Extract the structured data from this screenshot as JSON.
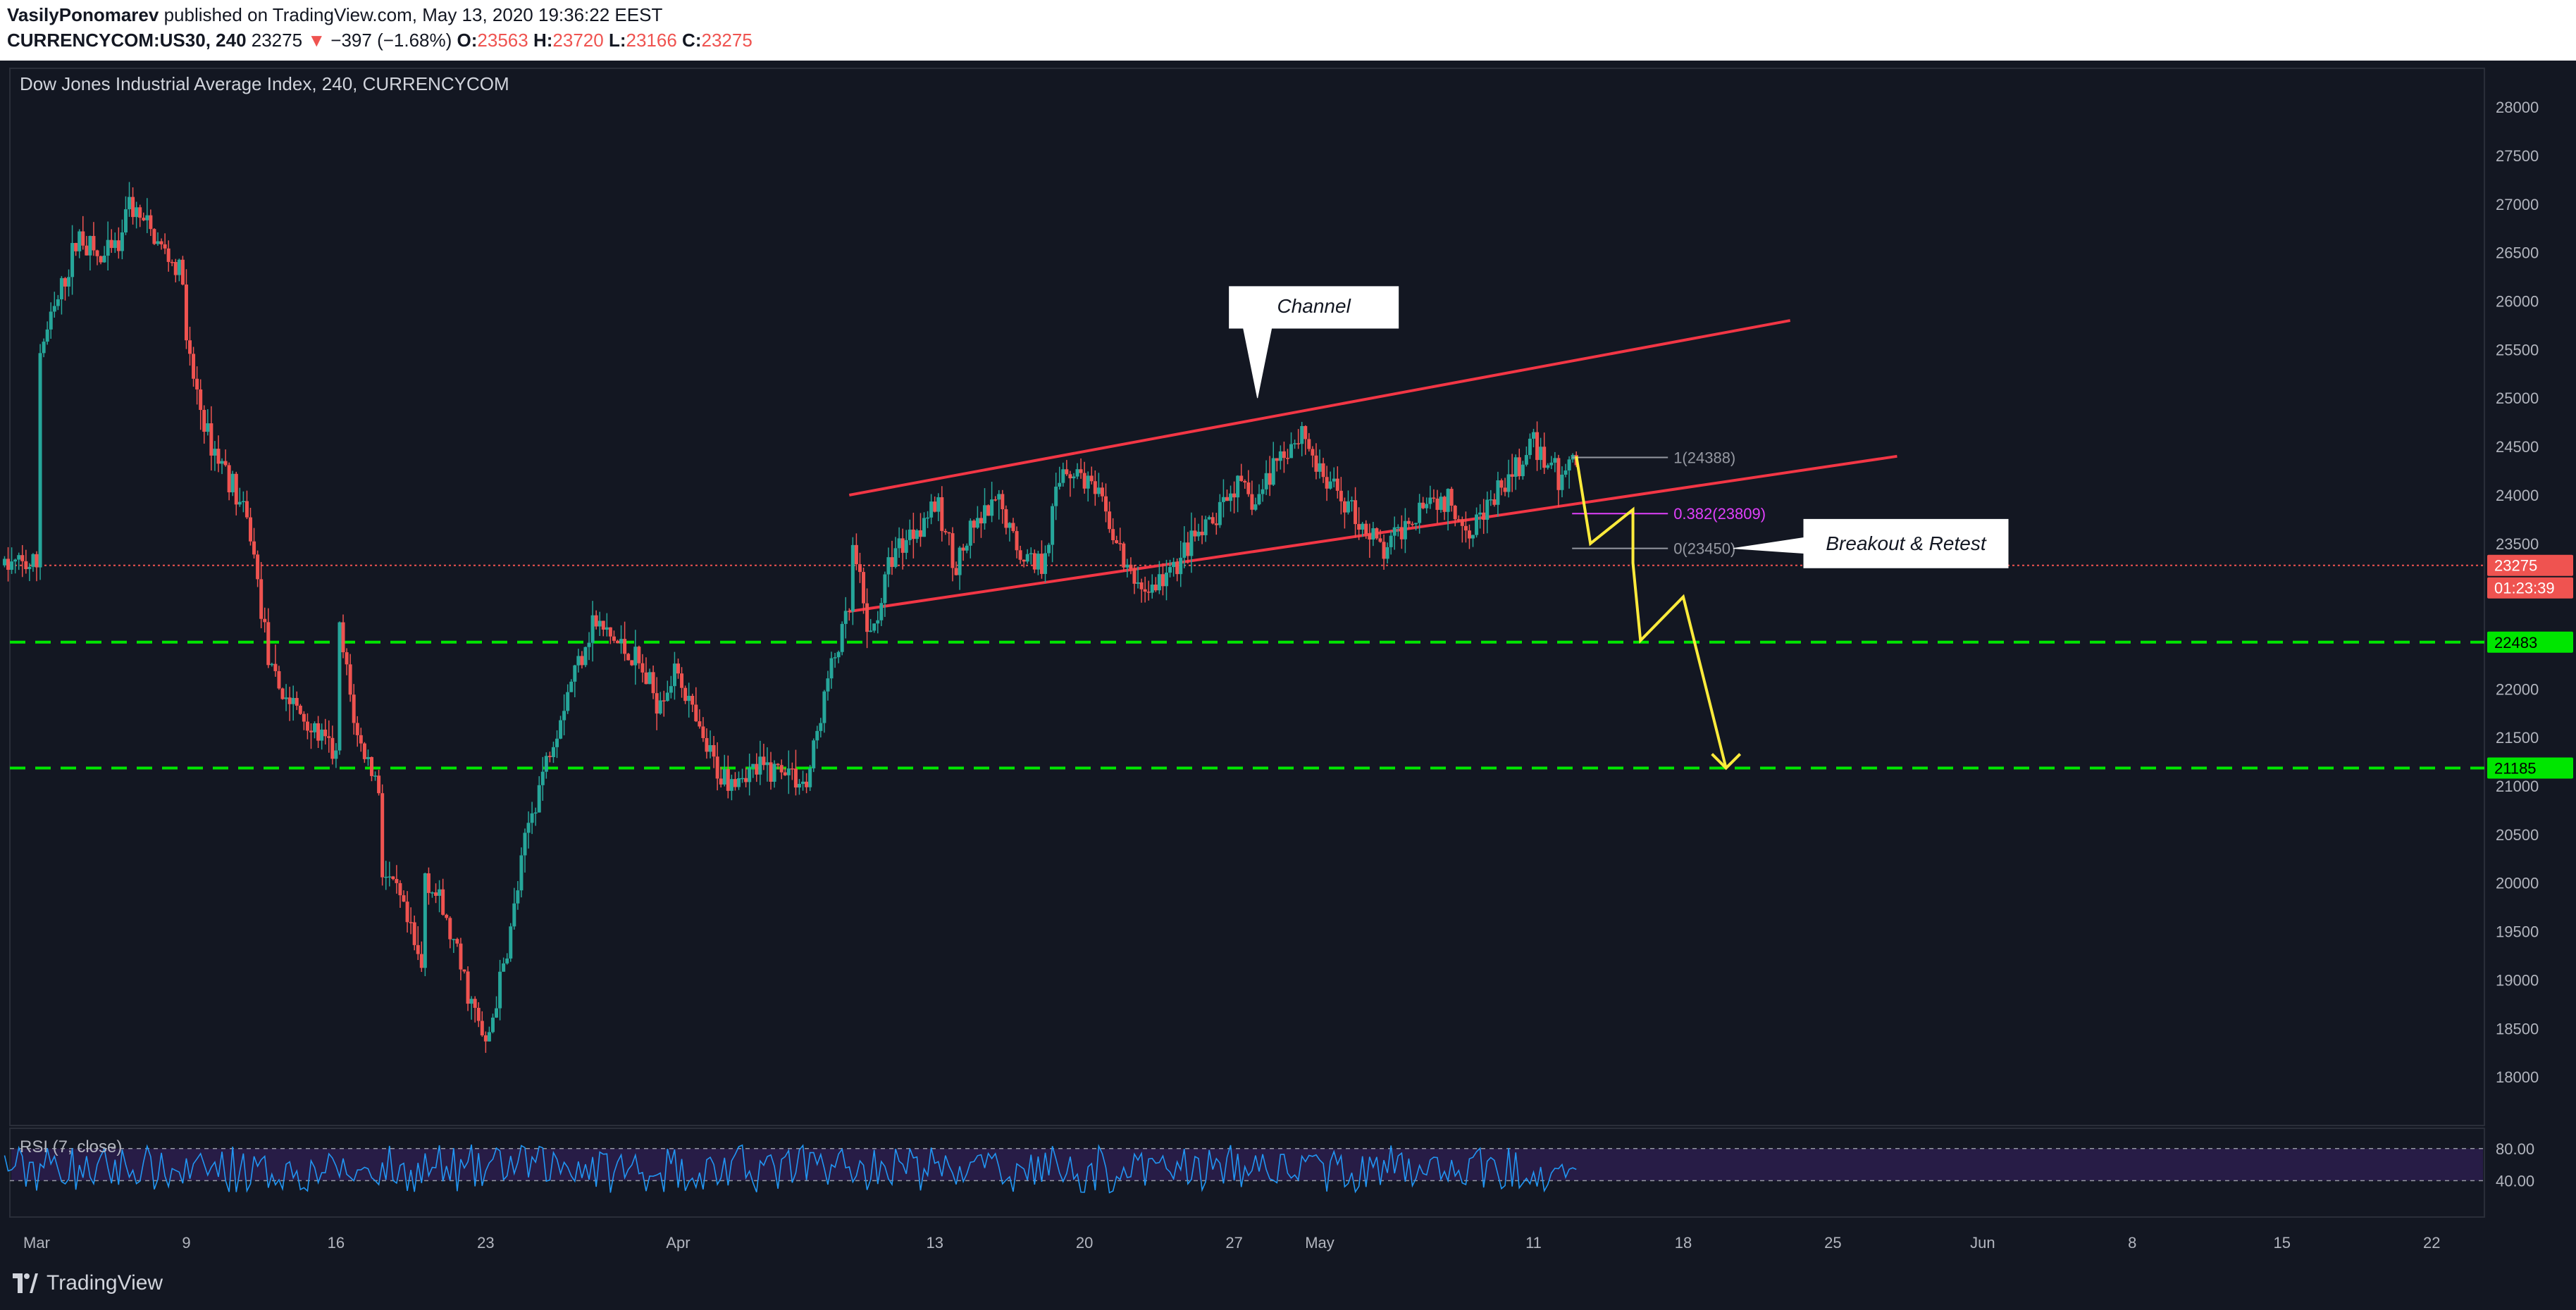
{
  "header": {
    "author": "VasilyPonomarev",
    "published_text": "published on TradingView.com, May 13, 2020 19:36:22 EEST",
    "symbol": "CURRENCYCOM:US30, 240",
    "last": "23275",
    "change_arrow": "▼",
    "change": "−397 (−1.68%)",
    "o_label": "O:",
    "o": "23563",
    "h_label": "H:",
    "h": "23720",
    "l_label": "L:",
    "l": "23166",
    "c_label": "C:",
    "c": "23275"
  },
  "footer": {
    "brand": "TradingView"
  },
  "chart_data": {
    "type": "candlestick",
    "title": "Dow Jones Industrial Average Index, 240, CURRENCYCOM",
    "y_ticks": [
      28000,
      27500,
      27000,
      26500,
      26000,
      25500,
      25000,
      24500,
      24000,
      23500,
      23000,
      22500,
      22000,
      21500,
      21000,
      20500,
      20000,
      19500,
      19000,
      18500,
      18000
    ],
    "x_ticks": [
      "Mar",
      "9",
      "16",
      "23",
      "Apr",
      "13",
      "20",
      "27",
      "May",
      "11",
      "18",
      "25",
      "Jun",
      "8",
      "15",
      "22"
    ],
    "ylim": [
      17500,
      28400
    ],
    "colors": {
      "up": "#26a69a",
      "down": "#ef5350",
      "background": "#131722",
      "channel": "#f23645",
      "projection": "#ffeb3b",
      "level": "#00e600"
    },
    "price_path": [
      [
        "Mar 2",
        25400
      ],
      [
        "Mar 3",
        26000
      ],
      [
        "Mar 4",
        26700
      ],
      [
        "Mar 5",
        26400
      ],
      [
        "Mar 6",
        26600
      ],
      [
        "Mar 6",
        27100
      ],
      [
        "Mar 9",
        26200
      ],
      [
        "Mar 9",
        25500
      ],
      [
        "Mar 10",
        24600
      ],
      [
        "Mar 11",
        24200
      ],
      [
        "Mar 12",
        23600
      ],
      [
        "Mar 13",
        22100
      ],
      [
        "Mar 16",
        21300
      ],
      [
        "Mar 16",
        22800
      ],
      [
        "Mar 17",
        21500
      ],
      [
        "Mar 18",
        21000
      ],
      [
        "Mar 18",
        20200
      ],
      [
        "Mar 19",
        19800
      ],
      [
        "Mar 20",
        19100
      ],
      [
        "Mar 20",
        20200
      ],
      [
        "Mar 21",
        19700
      ],
      [
        "Mar 23",
        18300
      ],
      [
        "Mar 24",
        19300
      ],
      [
        "Mar 25",
        20600
      ],
      [
        "Mar 26",
        21400
      ],
      [
        "Mar 27",
        22100
      ],
      [
        "Mar 28",
        22700
      ],
      [
        "Mar 30",
        22300
      ],
      [
        "Mar 31",
        21900
      ],
      [
        "Apr 1",
        22200
      ],
      [
        "Apr 2",
        21500
      ],
      [
        "Apr 3",
        21100
      ],
      [
        "Apr 6",
        21200
      ],
      [
        "Apr 7",
        21000
      ],
      [
        "Apr 8",
        22100
      ],
      [
        "Apr 9",
        22800
      ],
      [
        "Apr 9",
        23600
      ],
      [
        "Apr 10",
        22500
      ],
      [
        "Apr 11",
        23400
      ],
      [
        "Apr 13",
        23900
      ],
      [
        "Apr 14",
        23300
      ],
      [
        "Apr 15",
        23700
      ],
      [
        "Apr 16",
        23900
      ],
      [
        "Apr 17",
        23400
      ],
      [
        "Apr 18",
        23300
      ],
      [
        "Apr 19",
        24300
      ],
      [
        "Apr 20",
        24200
      ],
      [
        "Apr 21",
        23800
      ],
      [
        "Apr 22",
        23200
      ],
      [
        "Apr 23",
        23000
      ],
      [
        "Apr 24",
        23200
      ],
      [
        "Apr 25",
        23500
      ],
      [
        "Apr 26",
        23700
      ],
      [
        "Apr 27",
        24100
      ],
      [
        "Apr 28",
        23900
      ],
      [
        "Apr 29",
        24400
      ],
      [
        "Apr 30",
        24600
      ],
      [
        "Apr 30",
        24800
      ],
      [
        "May 1",
        24200
      ],
      [
        "May 2",
        24000
      ],
      [
        "May 3",
        23700
      ],
      [
        "May 4",
        23400
      ],
      [
        "May 5",
        23700
      ],
      [
        "May 6",
        24000
      ],
      [
        "May 7",
        23900
      ],
      [
        "May 8",
        23700
      ],
      [
        "May 9",
        23900
      ],
      [
        "May 10",
        24200
      ],
      [
        "May 11",
        24500
      ],
      [
        "May 12",
        24300
      ],
      [
        "May 12",
        24100
      ],
      [
        "May 13",
        24388
      ],
      [
        "May 13",
        23800
      ],
      [
        "May 13",
        23275
      ]
    ],
    "indicator": {
      "name": "RSI (7, close)",
      "levels": [
        80,
        40
      ]
    },
    "annotations": {
      "channel_label": "Channel",
      "breakout_label": "Breakout & Retest",
      "fib": [
        {
          "label": "1(24388)",
          "level": 24388,
          "color": "#9598a1"
        },
        {
          "label": "0.382(23809)",
          "level": 23809,
          "color": "#e040fb"
        },
        {
          "label": "0(23450)",
          "level": 23450,
          "color": "#9598a1"
        }
      ],
      "channel_upper": [
        [
          "Apr 9",
          24000
        ],
        [
          "May 23",
          25800
        ]
      ],
      "channel_lower": [
        [
          "Apr 9",
          22800
        ],
        [
          "May 28",
          24400
        ]
      ],
      "projection": [
        [
          "May 13",
          24400
        ],
        [
          "May 13",
          23500
        ],
        [
          "May 14",
          23850
        ],
        [
          "May 14",
          23300
        ],
        [
          "May 16",
          22500
        ],
        [
          "May 18",
          22950
        ],
        [
          "May 20",
          21185
        ]
      ],
      "last_price_line": 23275
    },
    "price_labels": [
      {
        "text": "23275",
        "value": 23275,
        "bg": "#ef5350",
        "color": "#ffffff"
      },
      {
        "text": "01:23:39",
        "value": 23000,
        "bg": "#ef5350",
        "color": "#ffffff"
      },
      {
        "text": "22483",
        "value": 22483,
        "bg": "#00e600",
        "color": "#000000"
      },
      {
        "text": "21185",
        "value": 21185,
        "bg": "#00e600",
        "color": "#000000"
      }
    ],
    "h_levels": [
      22483,
      21185
    ]
  }
}
